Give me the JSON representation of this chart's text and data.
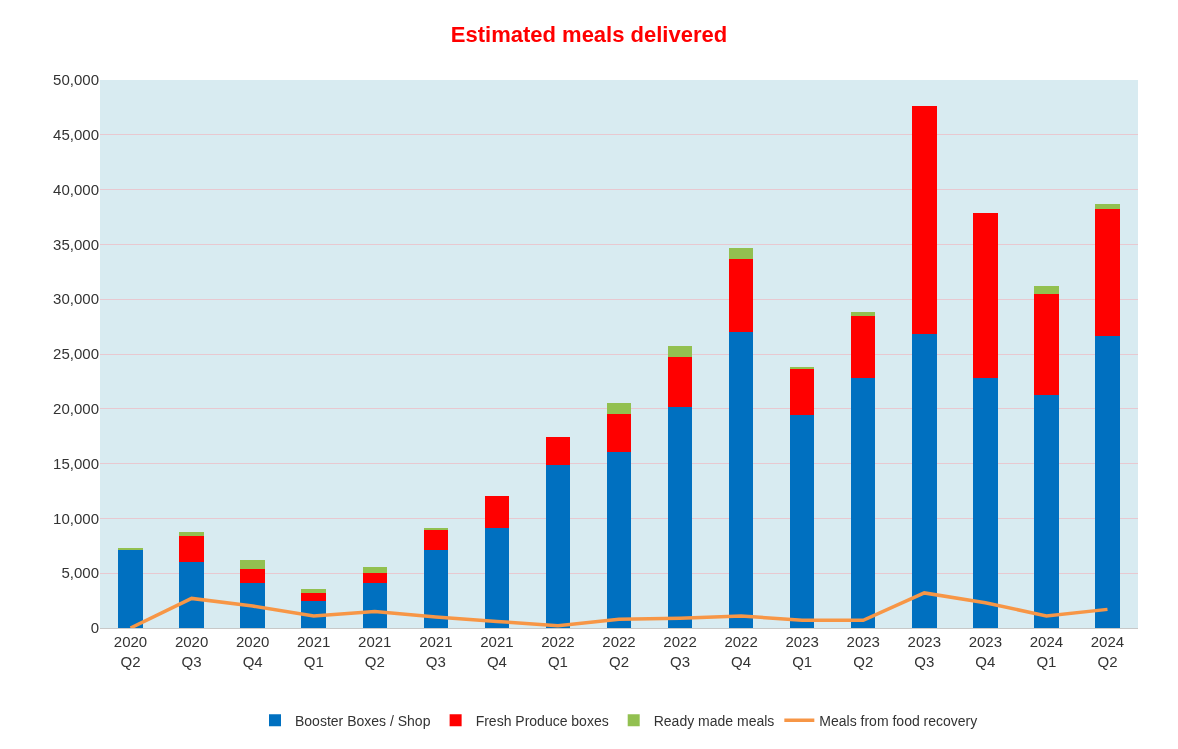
{
  "chart_data": {
    "type": "bar",
    "title": "Estimated meals delivered",
    "stacked": true,
    "categories": [
      "2020\nQ2",
      "2020\nQ3",
      "2020\nQ4",
      "2021\nQ1",
      "2021\nQ2",
      "2021\nQ3",
      "2021\nQ4",
      "2022\nQ1",
      "2022\nQ2",
      "2022\nQ3",
      "2022\nQ4",
      "2023\nQ1",
      "2023\nQ2",
      "2023\nQ3",
      "2023\nQ4",
      "2024\nQ1",
      "2024\nQ2"
    ],
    "series": [
      {
        "name": "Booster Boxes / Shop",
        "color": "#0070c0",
        "values": [
          7200,
          6000,
          4100,
          2500,
          4100,
          7100,
          9100,
          14900,
          16100,
          20200,
          27000,
          19400,
          22800,
          26800,
          22800,
          21300,
          26600
        ]
      },
      {
        "name": "Fresh Produce boxes",
        "color": "#ff0000",
        "values": [
          0,
          2400,
          1300,
          700,
          900,
          1800,
          2900,
          2500,
          3400,
          4500,
          6700,
          4200,
          5700,
          20800,
          15100,
          9200,
          11600
        ]
      },
      {
        "name": "Ready made meals",
        "color": "#92c050",
        "values": [
          100,
          400,
          800,
          400,
          600,
          200,
          0,
          0,
          1000,
          1000,
          1000,
          200,
          300,
          0,
          0,
          700,
          500
        ]
      },
      {
        "name": "Meals from food recovery",
        "color": "#f79646",
        "type": "line",
        "values": [
          0,
          2700,
          2000,
          1100,
          1500,
          1000,
          600,
          200,
          800,
          900,
          1100,
          700,
          700,
          3200,
          2300,
          1100,
          1700
        ]
      }
    ],
    "ylim": [
      0,
      50000
    ],
    "yticks": [
      {
        "value": 0,
        "label": "0"
      },
      {
        "value": 5000,
        "label": "5,000"
      },
      {
        "value": 10000,
        "label": "10,000"
      },
      {
        "value": 15000,
        "label": "15,000"
      },
      {
        "value": 20000,
        "label": "20,000"
      },
      {
        "value": 25000,
        "label": "25,000"
      },
      {
        "value": 30000,
        "label": "30,000"
      },
      {
        "value": 35000,
        "label": "35,000"
      },
      {
        "value": 40000,
        "label": "40,000"
      },
      {
        "value": 45000,
        "label": "45,000"
      },
      {
        "value": 50000,
        "label": "50,000"
      }
    ],
    "grid": "y",
    "legend": "bottom",
    "marker": "none",
    "line_style": "solid"
  }
}
